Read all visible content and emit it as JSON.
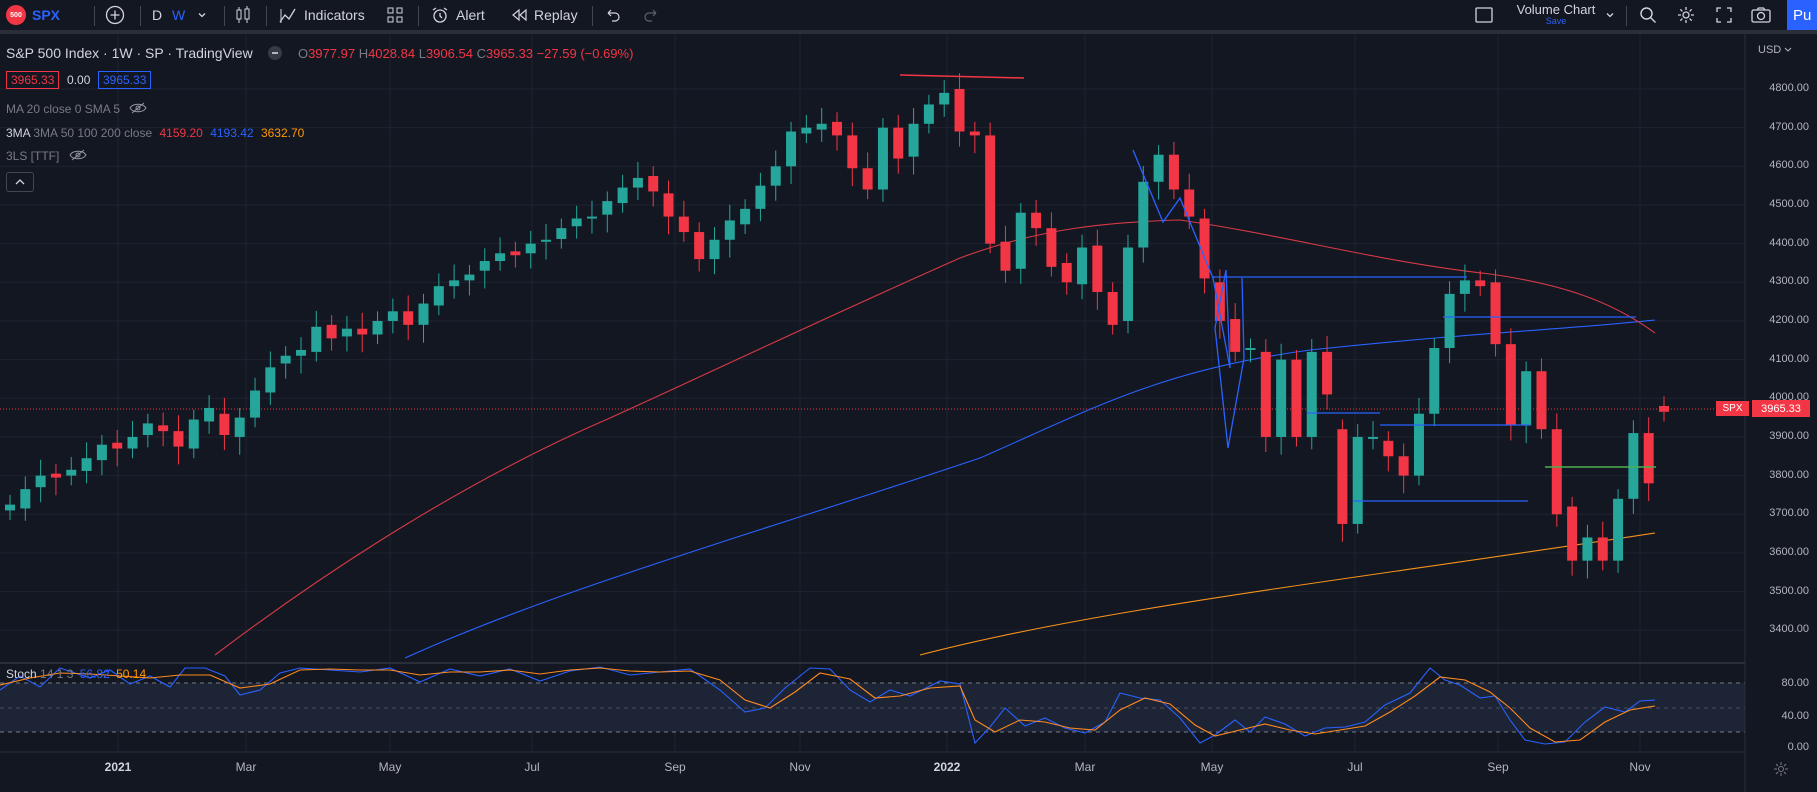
{
  "toolbar": {
    "symbol_badge": "500",
    "symbol": "SPX",
    "interval_d": "D",
    "interval_w": "W",
    "indicators": "Indicators",
    "alert": "Alert",
    "replay": "Replay",
    "layout_title": "Volume Chart",
    "layout_save": "Save",
    "publish": "Pu"
  },
  "legend": {
    "title": "S&P 500 Index · 1W · SP",
    "source": "· TradingView",
    "o_label": "O",
    "o_val": "3977.97",
    "h_label": "H",
    "h_val": "4028.84",
    "l_label": "L",
    "l_val": "3906.54",
    "c_label": "C",
    "c_val": "3965.33",
    "change": "−27.59 (−0.69%)",
    "bid": "3965.33",
    "spread": "0.00",
    "ask": "3965.33",
    "ma_label": "MA 20 close 0 SMA 5",
    "ma3_label": "3MA 50 100 200 close",
    "ma3_v1": "4159.20",
    "ma3_v2": "4193.42",
    "ma3_v3": "3632.70",
    "tls_label": "3LS [TTF]",
    "stoch_label": "Stoch",
    "stoch_params": "14 1 3",
    "stoch_k": "56.82",
    "stoch_d": "50.14"
  },
  "price_axis": {
    "currency": "USD",
    "labels": [
      "4800.00",
      "4700.00",
      "4600.00",
      "4500.00",
      "4400.00",
      "4300.00",
      "4200.00",
      "4100.00",
      "4000.00",
      "3900.00",
      "3800.00",
      "3700.00",
      "3600.00",
      "3500.00",
      "3400.00"
    ],
    "last_price": "3965.33",
    "last_symbol": "SPX"
  },
  "stoch_axis": {
    "labels": [
      "80.00",
      "40.00",
      "0.00"
    ]
  },
  "time_axis": {
    "labels": [
      {
        "text": "2021",
        "bold": true
      },
      {
        "text": "Mar",
        "bold": false
      },
      {
        "text": "May",
        "bold": false
      },
      {
        "text": "Jul",
        "bold": false
      },
      {
        "text": "Sep",
        "bold": false
      },
      {
        "text": "Nov",
        "bold": false
      },
      {
        "text": "2022",
        "bold": true
      },
      {
        "text": "Mar",
        "bold": false
      },
      {
        "text": "May",
        "bold": false
      },
      {
        "text": "Jul",
        "bold": false
      },
      {
        "text": "Sep",
        "bold": false
      },
      {
        "text": "Nov",
        "bold": false
      }
    ]
  },
  "colors": {
    "up": "#26a69a",
    "down": "#f23645",
    "accent": "#2962ff",
    "background": "#131722"
  },
  "chart_data": {
    "type": "candlestick",
    "interval": "1W",
    "candles_close": [
      3725,
      3765,
      3800,
      3795,
      3815,
      3845,
      3880,
      3870,
      3900,
      3935,
      3915,
      3875,
      3945,
      3975,
      3905,
      3950,
      4020,
      4080,
      4110,
      4125,
      4185,
      4155,
      4180,
      4165,
      4200,
      4225,
      4190,
      4245,
      4290,
      4305,
      4320,
      4355,
      4375,
      4370,
      4400,
      4410,
      4440,
      4465,
      4470,
      4510,
      4545,
      4570,
      4535,
      4470,
      4430,
      4360,
      4410,
      4460,
      4490,
      4550,
      4600,
      4690,
      4700,
      4710,
      4680,
      4595,
      4540,
      4700,
      4620,
      4710,
      4760,
      4790,
      4690,
      4680,
      4400,
      4330,
      4480,
      4440,
      4340,
      4300,
      4390,
      4275,
      4190,
      4390,
      4560,
      4630,
      4540,
      4470,
      4310,
      4200,
      4120,
      4130,
      3900,
      4100,
      3900,
      4120,
      4010,
      3675,
      3900,
      3900,
      3850,
      3800,
      3960,
      4130,
      4270,
      4305,
      4290,
      4140,
      3930,
      4070,
      3920,
      3700,
      3580,
      3640,
      3580,
      3740,
      3910,
      3780,
      3965
    ],
    "candles_open": [
      3710,
      3715,
      3770,
      3805,
      3800,
      3812,
      3840,
      3885,
      3870,
      3905,
      3930,
      3915,
      3870,
      3940,
      3960,
      3900,
      3950,
      4015,
      4090,
      4110,
      4120,
      4190,
      4160,
      4180,
      4165,
      4200,
      4225,
      4190,
      4240,
      4290,
      4305,
      4330,
      4355,
      4380,
      4375,
      4405,
      4412,
      4445,
      4465,
      4475,
      4505,
      4545,
      4575,
      4530,
      4470,
      4430,
      4360,
      4410,
      4450,
      4490,
      4550,
      4600,
      4685,
      4695,
      4715,
      4680,
      4595,
      4540,
      4700,
      4625,
      4710,
      4760,
      4800,
      4690,
      4680,
      4405,
      4335,
      4480,
      4440,
      4350,
      4295,
      4395,
      4275,
      4200,
      4390,
      4560,
      4630,
      4540,
      4465,
      4300,
      4205,
      4125,
      4120,
      3900,
      4100,
      3900,
      4120,
      3920,
      3675,
      3900,
      3890,
      3850,
      3800,
      3960,
      4130,
      4270,
      4305,
      4300,
      4140,
      3930,
      4070,
      3920,
      3720,
      3580,
      3640,
      3580,
      3740,
      3910,
      3980
    ],
    "ma_50_last": 4159.2,
    "ma_100_last": 4193.42,
    "ma_200_last": 3632.7,
    "stoch_k_last": 56.82,
    "stoch_d_last": 50.14,
    "ylim": [
      3300,
      4850
    ]
  }
}
